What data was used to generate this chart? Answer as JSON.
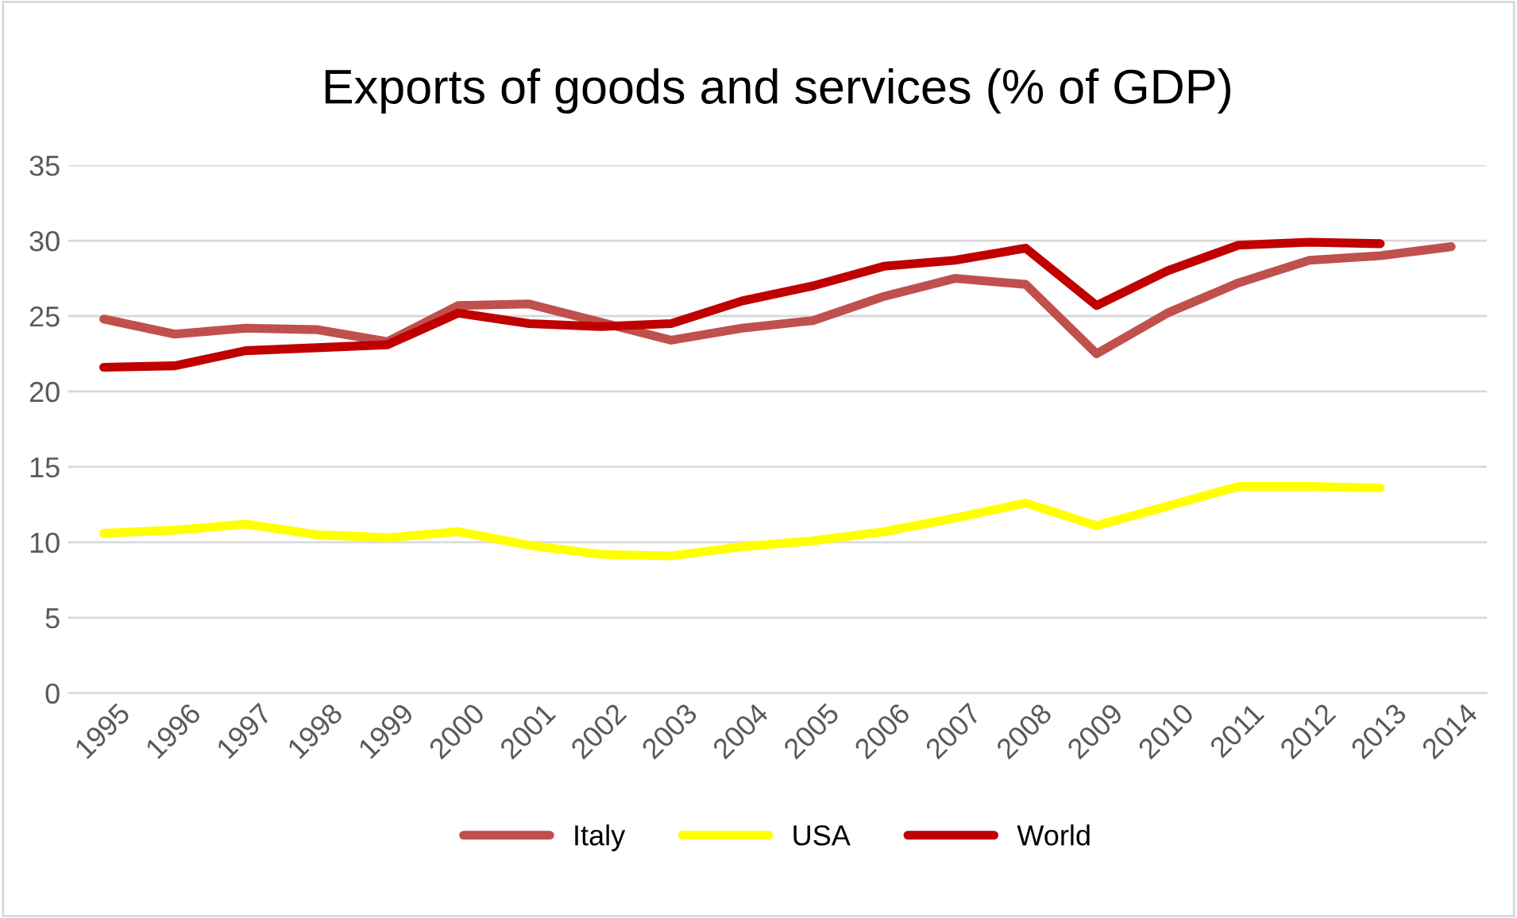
{
  "chart_data": {
    "type": "line",
    "title": "Exports of goods and services (% of GDP)",
    "categories": [
      "1995",
      "1996",
      "1997",
      "1998",
      "1999",
      "2000",
      "2001",
      "2002",
      "2003",
      "2004",
      "2005",
      "2006",
      "2007",
      "2008",
      "2009",
      "2010",
      "2011",
      "2012",
      "2013",
      "2014"
    ],
    "series": [
      {
        "name": "Italy",
        "color": "#c0504d",
        "values": [
          24.8,
          23.8,
          24.2,
          24.1,
          23.3,
          25.7,
          25.8,
          24.6,
          23.4,
          24.2,
          24.7,
          26.3,
          27.5,
          27.1,
          22.5,
          25.2,
          27.2,
          28.7,
          29.0,
          29.6
        ]
      },
      {
        "name": "USA",
        "color": "#ffff00",
        "values": [
          10.6,
          10.8,
          11.2,
          10.5,
          10.3,
          10.7,
          9.8,
          9.2,
          9.1,
          9.7,
          10.1,
          10.7,
          11.6,
          12.6,
          11.1,
          12.4,
          13.7,
          13.7,
          13.6,
          null
        ]
      },
      {
        "name": "World",
        "color": "#c00000",
        "values": [
          21.6,
          21.7,
          22.7,
          22.9,
          23.1,
          25.2,
          24.5,
          24.3,
          24.5,
          26.0,
          27.0,
          28.3,
          28.7,
          29.5,
          25.7,
          28.0,
          29.7,
          29.9,
          29.8,
          null
        ]
      }
    ],
    "ylim": [
      0,
      35
    ],
    "yticks": [
      0,
      5,
      10,
      15,
      20,
      25,
      30,
      35
    ],
    "grid": "y",
    "legend": "bottom",
    "marker": "none",
    "line_style": "solid"
  }
}
